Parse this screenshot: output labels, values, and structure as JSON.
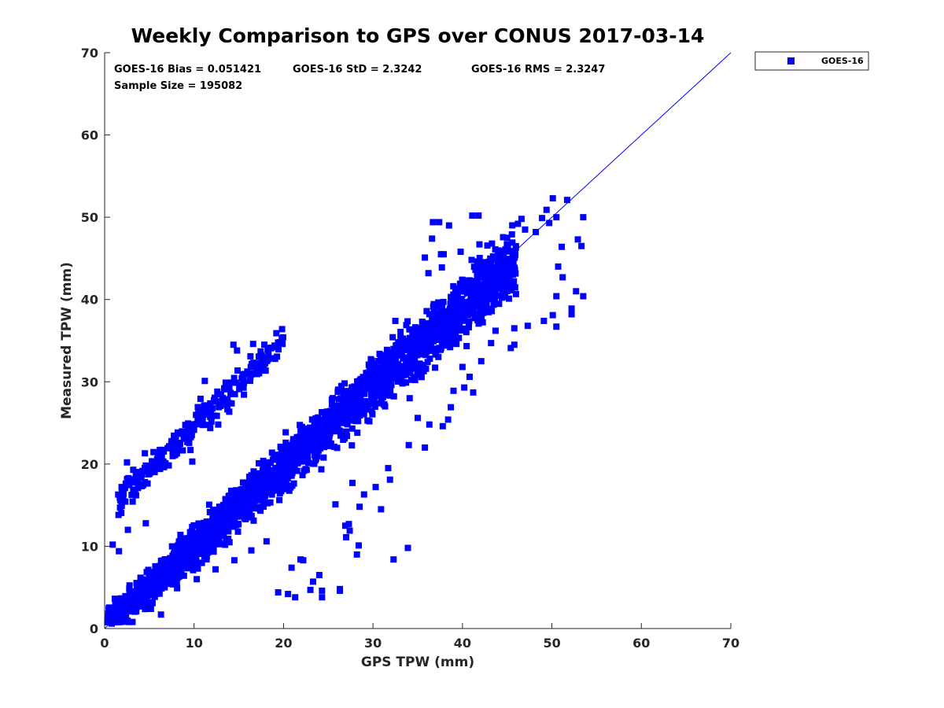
{
  "chart_data": {
    "type": "scatter",
    "title": "Weekly Comparison to GPS over CONUS 2017-03-14",
    "xlabel": "GPS TPW (mm)",
    "ylabel": "Measured TPW (mm)",
    "xlim": [
      0,
      70
    ],
    "ylim": [
      0,
      70
    ],
    "xticks": [
      "0",
      "10",
      "20",
      "30",
      "40",
      "50",
      "60",
      "70"
    ],
    "yticks": [
      "0",
      "10",
      "20",
      "30",
      "40",
      "50",
      "60",
      "70"
    ],
    "grid": false,
    "legend_position": "outside-top-right",
    "stats": {
      "bias": "GOES-16 Bias = 0.051421",
      "std": "GOES-16 StD = 2.3242",
      "rms": "GOES-16 RMS = 2.3247",
      "sample_size": "Sample Size = 195082"
    },
    "reference_line": {
      "x": [
        0,
        70
      ],
      "y": [
        0,
        70
      ]
    },
    "series": [
      {
        "name": "GOES-16",
        "color": "#0000ff",
        "marker": "square",
        "main_band": {
          "x_range": [
            0.3,
            46
          ],
          "slope": 0.97,
          "intercept": 0.3,
          "spread": 2.3
        },
        "upper_cluster": {
          "x_range": [
            1.5,
            20
          ],
          "slope": 1.05,
          "intercept": 14,
          "spread": 1.2
        },
        "points": [
          [
            53.5,
            50.0
          ],
          [
            52.9,
            47.3
          ],
          [
            53.3,
            46.5
          ],
          [
            52.7,
            41.0
          ],
          [
            53.5,
            40.4
          ],
          [
            51.7,
            52.1
          ],
          [
            50.1,
            52.3
          ],
          [
            49.4,
            50.9
          ],
          [
            48.9,
            49.9
          ],
          [
            50.5,
            50.0
          ],
          [
            46.6,
            49.8
          ],
          [
            47.0,
            48.5
          ],
          [
            51.1,
            46.4
          ],
          [
            50.7,
            44.0
          ],
          [
            51.2,
            42.7
          ],
          [
            50.5,
            40.4
          ],
          [
            52.2,
            38.9
          ],
          [
            52.2,
            38.2
          ],
          [
            50.1,
            38.1
          ],
          [
            49.1,
            37.4
          ],
          [
            50.5,
            36.7
          ],
          [
            47.3,
            36.8
          ],
          [
            45.8,
            36.5
          ],
          [
            45.8,
            34.5
          ],
          [
            45.4,
            34.1
          ],
          [
            43.7,
            36.2
          ],
          [
            43.2,
            34.7
          ],
          [
            42.1,
            32.5
          ],
          [
            40.0,
            31.8
          ],
          [
            40.8,
            30.6
          ],
          [
            41.2,
            28.7
          ],
          [
            39.0,
            28.9
          ],
          [
            40.2,
            29.3
          ],
          [
            46.2,
            49.2
          ],
          [
            48.2,
            48.2
          ],
          [
            49.7,
            49.3
          ],
          [
            37.4,
            49.4
          ],
          [
            36.7,
            49.4
          ],
          [
            41.1,
            50.2
          ],
          [
            41.8,
            50.2
          ],
          [
            38.5,
            49.0
          ],
          [
            36.6,
            47.4
          ],
          [
            37.6,
            45.5
          ],
          [
            37.9,
            45.5
          ],
          [
            39.8,
            45.8
          ],
          [
            41.9,
            46.7
          ],
          [
            43.3,
            46.8
          ],
          [
            45.0,
            47.5
          ],
          [
            32.5,
            37.4
          ],
          [
            35.8,
            45.1
          ],
          [
            36.2,
            43.2
          ],
          [
            37.7,
            43.9
          ],
          [
            19.2,
            35.9
          ],
          [
            19.0,
            34.4
          ],
          [
            16.6,
            34.6
          ],
          [
            14.4,
            34.5
          ],
          [
            14.8,
            33.8
          ],
          [
            16.3,
            33.1
          ],
          [
            17.5,
            31.8
          ],
          [
            18.2,
            32.8
          ],
          [
            11.2,
            30.1
          ],
          [
            12.6,
            28.8
          ],
          [
            13.6,
            27.8
          ],
          [
            14.2,
            29.9
          ],
          [
            15.1,
            29.6
          ],
          [
            10.4,
            25.6
          ],
          [
            11.5,
            26.0
          ],
          [
            12.7,
            24.8
          ],
          [
            9.4,
            23.2
          ],
          [
            9.6,
            21.7
          ],
          [
            9.8,
            20.3
          ],
          [
            8.3,
            21.8
          ],
          [
            7.6,
            21.6
          ],
          [
            6.8,
            20.1
          ],
          [
            6.2,
            19.4
          ],
          [
            4.5,
            21.3
          ],
          [
            2.5,
            20.2
          ],
          [
            3.2,
            19.3
          ],
          [
            1.9,
            17.2
          ],
          [
            1.7,
            15.9
          ],
          [
            33.9,
            9.8
          ],
          [
            32.3,
            8.4
          ],
          [
            28.2,
            9.0
          ],
          [
            28.4,
            10.1
          ],
          [
            27.4,
            11.9
          ],
          [
            27.3,
            12.7
          ],
          [
            27.0,
            11.1
          ],
          [
            26.9,
            12.5
          ],
          [
            25.8,
            15.1
          ],
          [
            27.7,
            17.7
          ],
          [
            26.3,
            4.8
          ],
          [
            26.3,
            4.6
          ],
          [
            24.3,
            4.6
          ],
          [
            23.0,
            4.7
          ],
          [
            23.3,
            5.7
          ],
          [
            24.0,
            6.5
          ],
          [
            21.9,
            8.4
          ],
          [
            22.2,
            8.3
          ],
          [
            20.9,
            7.4
          ],
          [
            20.5,
            4.2
          ],
          [
            19.4,
            4.4
          ],
          [
            21.3,
            3.8
          ],
          [
            24.3,
            3.8
          ],
          [
            30.3,
            17.2
          ],
          [
            31.7,
            19.5
          ],
          [
            34.0,
            22.3
          ],
          [
            35.8,
            22.0
          ],
          [
            37.8,
            24.6
          ],
          [
            38.4,
            25.4
          ],
          [
            38.7,
            26.9
          ],
          [
            35.0,
            25.6
          ],
          [
            36.3,
            24.8
          ],
          [
            34.1,
            28.0
          ],
          [
            33.3,
            29.8
          ],
          [
            31.9,
            18.1
          ],
          [
            28.5,
            14.8
          ],
          [
            30.9,
            14.5
          ],
          [
            29.0,
            16.3
          ],
          [
            2.0,
            1.0
          ],
          [
            0.8,
            0.6
          ],
          [
            1.2,
            3.3
          ],
          [
            0.9,
            10.2
          ],
          [
            1.6,
            9.4
          ],
          [
            2.6,
            12.0
          ],
          [
            4.6,
            12.8
          ],
          [
            6.3,
            1.7
          ],
          [
            8.1,
            4.9
          ],
          [
            10.3,
            6.0
          ],
          [
            12.4,
            7.2
          ],
          [
            14.5,
            8.3
          ],
          [
            16.4,
            9.5
          ],
          [
            18.1,
            10.6
          ]
        ]
      }
    ]
  },
  "legend": {
    "entries": [
      {
        "label": "GOES-16",
        "color": "#0000ff"
      }
    ]
  }
}
